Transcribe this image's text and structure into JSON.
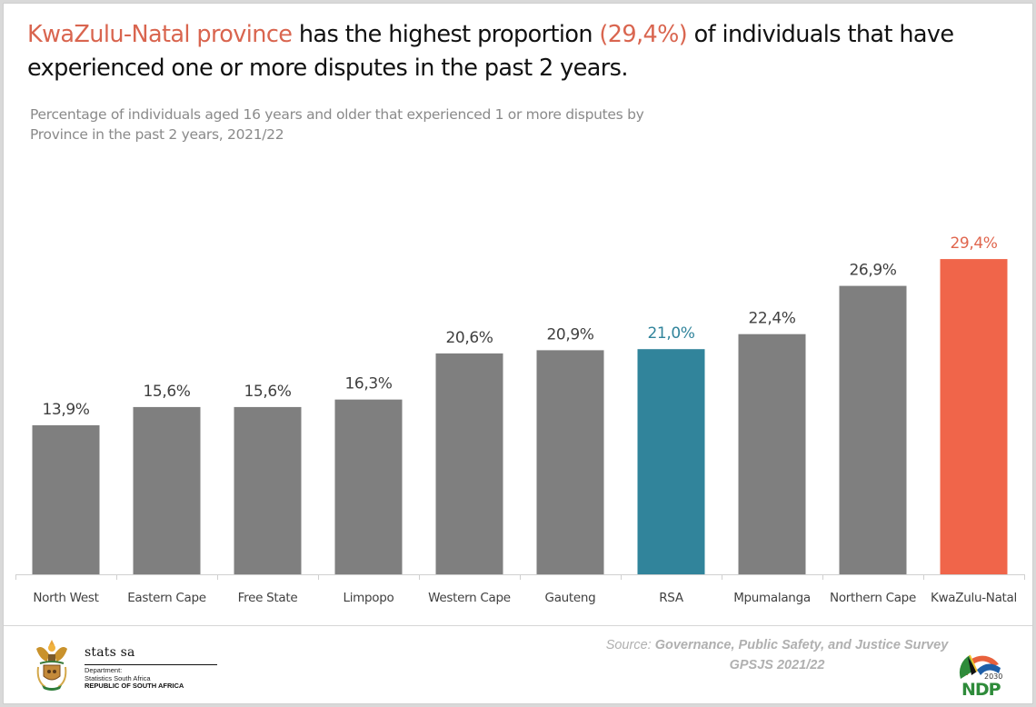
{
  "headline": {
    "highlight_1": "KwaZulu-Natal province",
    "text_1": " has the highest proportion ",
    "highlight_2": "(29,4%)",
    "text_2": " of individuals that have experienced one or more disputes in the past 2 years."
  },
  "colors": {
    "accent": "#d9654f",
    "bar_default": "#7f7f7f",
    "bar_rsa": "#31849b",
    "bar_highlight": "#f0654a",
    "label_default": "#404040",
    "label_rsa": "#31849b",
    "label_highlight": "#e0664e"
  },
  "chart_data": {
    "type": "bar",
    "title": "Percentage of individuals aged 16 years and older that experienced 1 or more disputes by Province in the past 2 years, 2021/22",
    "xlabel": "",
    "ylabel": "",
    "ylim": [
      0,
      30
    ],
    "grid": false,
    "categories": [
      "North West",
      "Eastern Cape",
      "Free State",
      "Limpopo",
      "Western Cape",
      "Gauteng",
      "RSA",
      "Mpumalanga",
      "Northern Cape",
      "KwaZulu-Natal"
    ],
    "values": [
      13.9,
      15.6,
      15.6,
      16.3,
      20.6,
      20.9,
      21.0,
      22.4,
      26.9,
      29.4
    ],
    "value_labels": [
      "13,9%",
      "15,6%",
      "15,6%",
      "16,3%",
      "20,6%",
      "20,9%",
      "21,0%",
      "22,4%",
      "26,9%",
      "29,4%"
    ],
    "highlight": {
      "RSA": "rsa",
      "KwaZulu-Natal": "highlight"
    }
  },
  "footer": {
    "org_name": "stats sa",
    "dept_line1": "Department:",
    "dept_line2": "Statistics South Africa",
    "dept_line3": "REPUBLIC OF SOUTH AFRICA",
    "source_prefix": "Source: ",
    "source_title": "Governance, Public Safety, and Justice Survey",
    "source_code": "GPSJS 2021/22",
    "ndp_text": "NDP",
    "ndp_year": "2030",
    "left_logo_icon": "coat-of-arms-icon",
    "right_logo_icon": "ndp-2030-logo-icon"
  }
}
